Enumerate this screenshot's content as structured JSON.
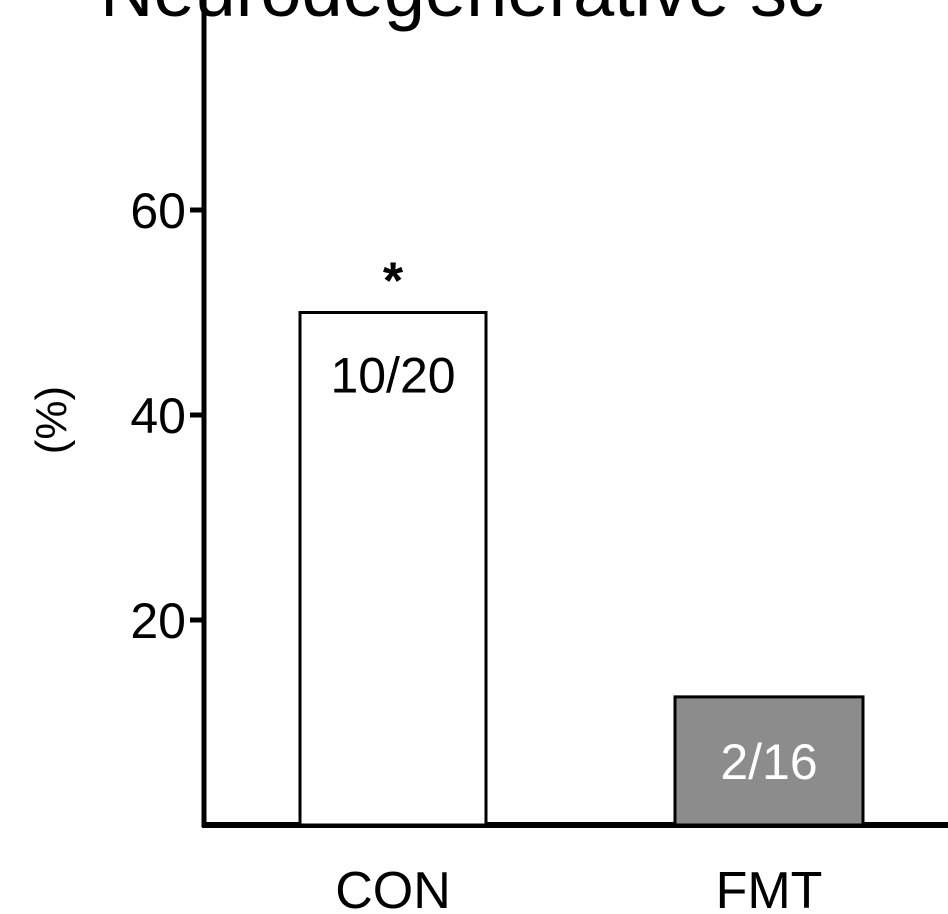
{
  "chart_data": {
    "type": "bar",
    "title": "Neurodegenerative sc",
    "ylabel": "(%)",
    "xlabel": "",
    "ylim": [
      0,
      80
    ],
    "yticks": [
      20,
      40,
      60
    ],
    "categories": [
      "CON",
      "FMT"
    ],
    "values": [
      50,
      12.5
    ],
    "bar_labels": [
      "10/20",
      "2/16"
    ],
    "significance": [
      "*",
      ""
    ],
    "colors": [
      "#ffffff",
      "#8c8c8c"
    ],
    "bar_label_colors": [
      "#000000",
      "#ffffff"
    ],
    "grid": false,
    "legend": "none"
  }
}
